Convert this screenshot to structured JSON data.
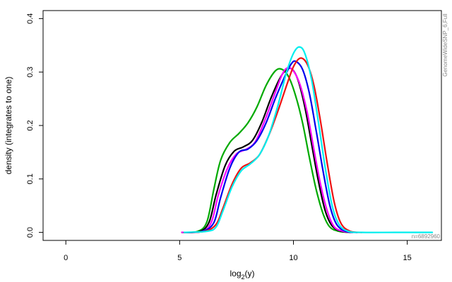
{
  "chart_data": {
    "type": "line",
    "title": "",
    "xlabel_base": "log",
    "xlabel_sub": "2",
    "xlabel_arg": "(y)",
    "ylabel": "density (integrates to one)",
    "xlim": [
      -1,
      16.5
    ],
    "ylim": [
      -0.015,
      0.415
    ],
    "x_ticks": [
      0,
      5,
      10,
      15
    ],
    "y_ticks": [
      0.0,
      0.1,
      0.2,
      0.3,
      0.4
    ],
    "y_tick_labels": [
      "0.0",
      "0.1",
      "0.2",
      "0.3",
      "0.4"
    ],
    "grid": false,
    "side_label": "GenomeWideSNP_6,Full",
    "n_label": "n=6892960",
    "series": [
      {
        "color": "#00aa00",
        "points": [
          [
            5.1,
            0
          ],
          [
            5.8,
            0.002
          ],
          [
            6.2,
            0.02
          ],
          [
            6.5,
            0.08
          ],
          [
            6.8,
            0.135
          ],
          [
            7.2,
            0.168
          ],
          [
            7.6,
            0.185
          ],
          [
            8.0,
            0.205
          ],
          [
            8.4,
            0.235
          ],
          [
            8.8,
            0.275
          ],
          [
            9.2,
            0.302
          ],
          [
            9.5,
            0.305
          ],
          [
            9.8,
            0.29
          ],
          [
            10.1,
            0.255
          ],
          [
            10.4,
            0.205
          ],
          [
            10.7,
            0.14
          ],
          [
            11.0,
            0.08
          ],
          [
            11.3,
            0.035
          ],
          [
            11.6,
            0.01
          ],
          [
            12.0,
            0.002
          ],
          [
            12.5,
            0
          ]
        ]
      },
      {
        "color": "#000000",
        "points": [
          [
            5.1,
            0
          ],
          [
            5.9,
            0.002
          ],
          [
            6.3,
            0.02
          ],
          [
            6.6,
            0.07
          ],
          [
            7.0,
            0.125
          ],
          [
            7.4,
            0.152
          ],
          [
            7.8,
            0.16
          ],
          [
            8.2,
            0.172
          ],
          [
            8.6,
            0.205
          ],
          [
            9.0,
            0.25
          ],
          [
            9.4,
            0.288
          ],
          [
            9.7,
            0.305
          ],
          [
            9.95,
            0.305
          ],
          [
            10.2,
            0.285
          ],
          [
            10.5,
            0.235
          ],
          [
            10.8,
            0.165
          ],
          [
            11.1,
            0.095
          ],
          [
            11.4,
            0.04
          ],
          [
            11.7,
            0.012
          ],
          [
            12.1,
            0.002
          ],
          [
            12.6,
            0
          ]
        ]
      },
      {
        "color": "#ff00ff",
        "points": [
          [
            5.1,
            0
          ],
          [
            6.0,
            0.002
          ],
          [
            6.4,
            0.02
          ],
          [
            6.7,
            0.07
          ],
          [
            7.1,
            0.12
          ],
          [
            7.5,
            0.147
          ],
          [
            7.9,
            0.155
          ],
          [
            8.3,
            0.168
          ],
          [
            8.7,
            0.205
          ],
          [
            9.1,
            0.25
          ],
          [
            9.5,
            0.295
          ],
          [
            9.75,
            0.308
          ],
          [
            10.0,
            0.302
          ],
          [
            10.3,
            0.275
          ],
          [
            10.6,
            0.225
          ],
          [
            10.9,
            0.155
          ],
          [
            11.2,
            0.088
          ],
          [
            11.5,
            0.038
          ],
          [
            11.8,
            0.01
          ],
          [
            12.2,
            0.002
          ],
          [
            12.6,
            0
          ]
        ]
      },
      {
        "color": "#0000ee",
        "points": [
          [
            5.2,
            0
          ],
          [
            6.0,
            0.002
          ],
          [
            6.5,
            0.018
          ],
          [
            6.8,
            0.065
          ],
          [
            7.2,
            0.12
          ],
          [
            7.6,
            0.15
          ],
          [
            8.0,
            0.156
          ],
          [
            8.4,
            0.172
          ],
          [
            8.8,
            0.205
          ],
          [
            9.2,
            0.25
          ],
          [
            9.6,
            0.29
          ],
          [
            9.9,
            0.315
          ],
          [
            10.1,
            0.32
          ],
          [
            10.4,
            0.305
          ],
          [
            10.7,
            0.26
          ],
          [
            11.0,
            0.19
          ],
          [
            11.3,
            0.115
          ],
          [
            11.6,
            0.05
          ],
          [
            11.9,
            0.015
          ],
          [
            12.3,
            0.002
          ],
          [
            12.8,
            0
          ]
        ]
      },
      {
        "color": "#ee1111",
        "points": [
          [
            5.2,
            0
          ],
          [
            6.1,
            0.002
          ],
          [
            6.6,
            0.015
          ],
          [
            6.9,
            0.045
          ],
          [
            7.3,
            0.09
          ],
          [
            7.7,
            0.12
          ],
          [
            8.1,
            0.13
          ],
          [
            8.5,
            0.145
          ],
          [
            8.9,
            0.18
          ],
          [
            9.3,
            0.225
          ],
          [
            9.7,
            0.275
          ],
          [
            10.0,
            0.31
          ],
          [
            10.3,
            0.326
          ],
          [
            10.6,
            0.315
          ],
          [
            10.9,
            0.275
          ],
          [
            11.2,
            0.205
          ],
          [
            11.5,
            0.125
          ],
          [
            11.8,
            0.055
          ],
          [
            12.1,
            0.016
          ],
          [
            12.5,
            0.002
          ],
          [
            13.0,
            0
          ]
        ]
      },
      {
        "color": "#00eeee",
        "points": [
          [
            5.2,
            0
          ],
          [
            6.2,
            0.002
          ],
          [
            6.6,
            0.01
          ],
          [
            6.9,
            0.04
          ],
          [
            7.3,
            0.085
          ],
          [
            7.7,
            0.115
          ],
          [
            8.1,
            0.128
          ],
          [
            8.5,
            0.145
          ],
          [
            8.9,
            0.18
          ],
          [
            9.3,
            0.235
          ],
          [
            9.7,
            0.3
          ],
          [
            10.0,
            0.335
          ],
          [
            10.25,
            0.347
          ],
          [
            10.5,
            0.335
          ],
          [
            10.8,
            0.285
          ],
          [
            11.1,
            0.205
          ],
          [
            11.4,
            0.12
          ],
          [
            11.7,
            0.05
          ],
          [
            12.0,
            0.015
          ],
          [
            12.4,
            0.002
          ],
          [
            13.0,
            0
          ],
          [
            14.5,
            0
          ],
          [
            16.1,
            0
          ]
        ]
      }
    ]
  }
}
